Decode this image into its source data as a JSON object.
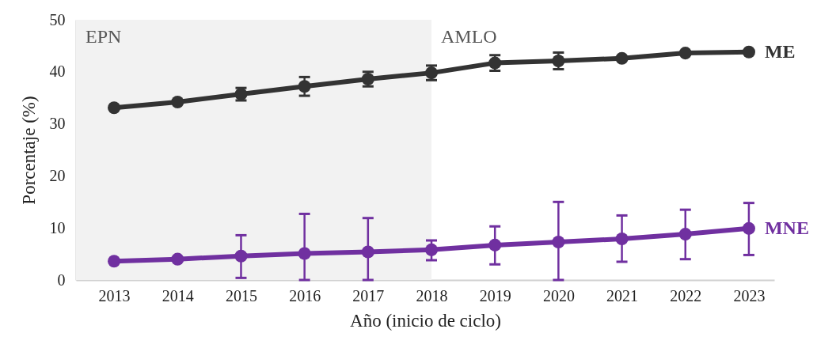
{
  "chart_data": {
    "type": "line",
    "xlabel": "Año (inicio de ciclo)",
    "ylabel": "Porcentaje (%)",
    "x": [
      2013,
      2014,
      2015,
      2016,
      2017,
      2018,
      2019,
      2020,
      2021,
      2022,
      2023
    ],
    "xlim": [
      2012.4,
      2023.4
    ],
    "xticks": [
      2013,
      2014,
      2015,
      2016,
      2017,
      2018,
      2019,
      2020,
      2021,
      2022,
      2023
    ],
    "ylim": [
      0,
      50
    ],
    "yticks": [
      0,
      10,
      20,
      30,
      40,
      50
    ],
    "marker": "circle",
    "grid": false,
    "legend": "right",
    "series": [
      {
        "name": "ME",
        "color": "#333333",
        "values": [
          33.1,
          34.2,
          35.7,
          37.2,
          38.6,
          39.8,
          41.7,
          42.1,
          42.6,
          43.6,
          43.8
        ],
        "errors": [
          null,
          null,
          1.2,
          1.8,
          1.4,
          1.4,
          1.5,
          1.6,
          null,
          null,
          null
        ]
      },
      {
        "name": "MNE",
        "color": "#7030a0",
        "values": [
          3.6,
          4.0,
          4.6,
          5.1,
          5.4,
          5.8,
          6.7,
          7.3,
          7.9,
          8.8,
          9.9
        ],
        "errors": [
          null,
          null,
          [
            0.4,
            8.6
          ],
          [
            0,
            12.7
          ],
          [
            0,
            11.9
          ],
          [
            3.8,
            7.6
          ],
          [
            3.0,
            10.3
          ],
          [
            0,
            15.0
          ],
          [
            3.5,
            12.4
          ],
          [
            4.0,
            13.5
          ],
          [
            4.8,
            14.8
          ]
        ]
      }
    ],
    "bands": [
      {
        "axis": "x",
        "from": 2012.4,
        "to": 2018,
        "label": "EPN",
        "color": "#f2f2f2"
      }
    ],
    "annotations": [
      "AMLO"
    ]
  }
}
